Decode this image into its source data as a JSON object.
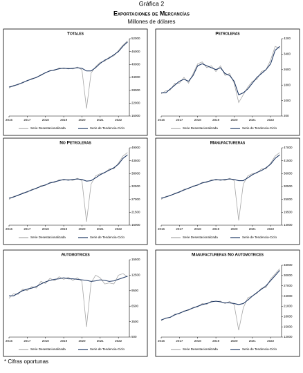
{
  "header": {
    "figure": "Gráfica 2",
    "title": "Exportaciones de Mercancías",
    "subtitle": "Millones de dólares",
    "footnote": "* Cifras oportunas"
  },
  "chart_data": [
    {
      "type": "line",
      "title": "Totales",
      "x": [
        2016,
        2016.25,
        2016.5,
        2016.75,
        2017,
        2017.25,
        2017.5,
        2017.75,
        2018,
        2018.25,
        2018.5,
        2018.75,
        2019,
        2019.25,
        2019.5,
        2019.75,
        2020,
        2020.25,
        2020.5,
        2020.75,
        2021,
        2021.25,
        2021.5,
        2021.75,
        2022,
        2022.25,
        2022.5
      ],
      "xlim": [
        2016,
        2022.6
      ],
      "xticks": [
        2016,
        2017,
        2018,
        2019,
        2020,
        2021,
        2022
      ],
      "ylim": [
        16000,
        52000
      ],
      "yticks": [
        16000,
        22000,
        28000,
        34000,
        40000,
        46000,
        52000
      ],
      "series": [
        {
          "name": "Serie Desestacionalizada",
          "color": "#a6a6a6",
          "values": [
            29000,
            30300,
            30500,
            31800,
            32300,
            33500,
            33800,
            35300,
            36000,
            37300,
            37200,
            38400,
            38000,
            38300,
            37900,
            38800,
            37500,
            19500,
            36000,
            39000,
            41000,
            41500,
            43500,
            44000,
            46500,
            49000,
            51000
          ]
        },
        {
          "name": "Serie de Tendencia-Ciclo",
          "color": "#1f3864",
          "values": [
            29500,
            30000,
            30800,
            31500,
            32500,
            33200,
            34000,
            35000,
            36200,
            37000,
            37500,
            38000,
            38300,
            38000,
            38200,
            38500,
            38200,
            37000,
            37000,
            38500,
            40500,
            42000,
            43000,
            44500,
            46000,
            48500,
            50500
          ]
        }
      ]
    },
    {
      "type": "line",
      "title": "Petroleras",
      "x": [
        2016,
        2016.25,
        2016.5,
        2016.75,
        2017,
        2017.25,
        2017.5,
        2017.75,
        2018,
        2018.25,
        2018.5,
        2018.75,
        2019,
        2019.25,
        2019.5,
        2019.75,
        2020,
        2020.25,
        2020.5,
        2020.75,
        2021,
        2021.25,
        2021.5,
        2021.75,
        2022,
        2022.25,
        2022.5
      ],
      "xlim": [
        2016,
        2022.6
      ],
      "xticks": [
        2016,
        2017,
        2018,
        2019,
        2020,
        2021,
        2022
      ],
      "ylim": [
        200,
        4200
      ],
      "yticks": [
        200,
        1000,
        1800,
        2600,
        3400,
        4200
      ],
      "series": [
        {
          "name": "Serie Desestacionalizada",
          "color": "#a6a6a6",
          "values": [
            1350,
            1500,
            1550,
            1900,
            1900,
            2200,
            1900,
            2400,
            2900,
            3000,
            2700,
            2800,
            2500,
            2800,
            2300,
            2400,
            1900,
            900,
            1300,
            1700,
            2000,
            2100,
            2500,
            2600,
            3100,
            3800,
            3700
          ]
        },
        {
          "name": "Serie de Tendencia-Ciclo",
          "color": "#1f3864",
          "values": [
            1400,
            1400,
            1600,
            1800,
            2000,
            2100,
            2000,
            2300,
            2800,
            2900,
            2800,
            2700,
            2600,
            2700,
            2400,
            2300,
            2000,
            1300,
            1400,
            1600,
            1900,
            2200,
            2400,
            2600,
            2900,
            3600,
            3800
          ]
        }
      ]
    },
    {
      "type": "line",
      "title": "No Petroleras",
      "x": [
        2016,
        2016.25,
        2016.5,
        2016.75,
        2017,
        2017.25,
        2017.5,
        2017.75,
        2018,
        2018.25,
        2018.5,
        2018.75,
        2019,
        2019.25,
        2019.5,
        2019.75,
        2020,
        2020.25,
        2020.5,
        2020.75,
        2021,
        2021.25,
        2021.5,
        2021.75,
        2022,
        2022.25,
        2022.5
      ],
      "xlim": [
        2016,
        2022.6
      ],
      "xticks": [
        2016,
        2017,
        2018,
        2019,
        2020,
        2021,
        2022
      ],
      "ylim": [
        16000,
        49000
      ],
      "yticks": [
        16000,
        21500,
        27000,
        32500,
        38000,
        43500,
        49000
      ],
      "series": [
        {
          "name": "Serie Desestacionalizada",
          "color": "#a6a6a6",
          "values": [
            27000,
            28300,
            28600,
            29800,
            30000,
            31300,
            31500,
            32900,
            33000,
            34300,
            34200,
            35400,
            35200,
            35500,
            35100,
            36000,
            35000,
            17500,
            33500,
            37000,
            38000,
            38300,
            40000,
            40000,
            42500,
            45500,
            47000
          ]
        },
        {
          "name": "Serie de Tendencia-Ciclo",
          "color": "#1f3864",
          "values": [
            27500,
            28000,
            28800,
            29500,
            30300,
            31000,
            31800,
            32500,
            33200,
            34000,
            34500,
            35000,
            35500,
            35200,
            35500,
            35700,
            35500,
            34800,
            35000,
            36200,
            37500,
            38500,
            39500,
            40500,
            42000,
            44500,
            46000
          ]
        }
      ]
    },
    {
      "type": "line",
      "title": "Manufactureras",
      "x": [
        2016,
        2016.25,
        2016.5,
        2016.75,
        2017,
        2017.25,
        2017.5,
        2017.75,
        2018,
        2018.25,
        2018.5,
        2018.75,
        2019,
        2019.25,
        2019.5,
        2019.75,
        2020,
        2020.25,
        2020.5,
        2020.75,
        2021,
        2021.25,
        2021.5,
        2021.75,
        2022,
        2022.25,
        2022.5
      ],
      "xlim": [
        2016,
        2022.6
      ],
      "xticks": [
        2016,
        2017,
        2018,
        2019,
        2020,
        2021,
        2022
      ],
      "ylim": [
        14000,
        47000
      ],
      "yticks": [
        14000,
        19500,
        25000,
        30500,
        36000,
        41500,
        47000
      ],
      "series": [
        {
          "name": "Serie Desestacionalizada",
          "color": "#a6a6a6",
          "values": [
            25000,
            26300,
            26500,
            27700,
            28000,
            29300,
            29500,
            30800,
            31000,
            32300,
            32200,
            33400,
            33200,
            33500,
            33100,
            34000,
            33000,
            16000,
            31500,
            35000,
            36000,
            36200,
            38000,
            38000,
            40500,
            43500,
            45000
          ]
        },
        {
          "name": "Serie de Tendencia-Ciclo",
          "color": "#1f3864",
          "values": [
            25500,
            26000,
            26700,
            27400,
            28200,
            29000,
            29800,
            30500,
            31200,
            32000,
            32500,
            33000,
            33500,
            33200,
            33500,
            33700,
            33500,
            33000,
            33000,
            34200,
            35500,
            36500,
            37300,
            38500,
            40000,
            42500,
            44000
          ]
        }
      ]
    },
    {
      "type": "line",
      "title": "Automotrices",
      "x": [
        2016,
        2016.25,
        2016.5,
        2016.75,
        2017,
        2017.25,
        2017.5,
        2017.75,
        2018,
        2018.25,
        2018.5,
        2018.75,
        2019,
        2019.25,
        2019.5,
        2019.75,
        2020,
        2020.25,
        2020.5,
        2020.75,
        2021,
        2021.25,
        2021.5,
        2021.75,
        2022,
        2022.25,
        2022.5
      ],
      "xlim": [
        2016,
        2022.6
      ],
      "xticks": [
        2016,
        2017,
        2018,
        2019,
        2020,
        2021,
        2022
      ],
      "ylim": [
        500,
        15500
      ],
      "yticks": [
        500,
        3500,
        6500,
        9500,
        12500,
        15500
      ],
      "series": [
        {
          "name": "Serie Desestacionalizada",
          "color": "#a6a6a6",
          "values": [
            8000,
            8900,
            8800,
            9800,
            9500,
            10300,
            10000,
            11300,
            10900,
            11900,
            11400,
            12200,
            11700,
            12100,
            11500,
            12000,
            11300,
            2500,
            11000,
            12500,
            12000,
            10800,
            11000,
            10800,
            12500,
            12800,
            12200
          ]
        },
        {
          "name": "Serie de Tendencia-Ciclo",
          "color": "#1f3864",
          "values": [
            8500,
            8500,
            9000,
            9500,
            9800,
            10000,
            10300,
            10800,
            11200,
            11500,
            11700,
            11800,
            12000,
            11800,
            11800,
            11700,
            11600,
            11500,
            11300,
            11400,
            11600,
            11500,
            11300,
            11400,
            11700,
            12000,
            12300
          ]
        }
      ]
    },
    {
      "type": "line",
      "title": "Manufactureras No Automotrices",
      "x": [
        2016,
        2016.25,
        2016.5,
        2016.75,
        2017,
        2017.25,
        2017.5,
        2017.75,
        2018,
        2018.25,
        2018.5,
        2018.75,
        2019,
        2019.25,
        2019.5,
        2019.75,
        2020,
        2020.25,
        2020.5,
        2020.75,
        2021,
        2021.25,
        2021.5,
        2021.75,
        2022,
        2022.25,
        2022.5
      ],
      "xlim": [
        2016,
        2022.6
      ],
      "xticks": [
        2016,
        2017,
        2018,
        2019,
        2020,
        2021,
        2022
      ],
      "ylim": [
        12000,
        33000
      ],
      "yticks": [
        12000,
        15000,
        18000,
        21000,
        24000,
        27000,
        30000,
        33000
      ],
      "series": [
        {
          "name": "Serie Desestacionalizada",
          "color": "#a6a6a6",
          "values": [
            16800,
            17600,
            17700,
            18700,
            18800,
            19700,
            19800,
            20700,
            20800,
            21800,
            21600,
            22500,
            22400,
            22500,
            21800,
            22400,
            21500,
            14000,
            20500,
            23500,
            24000,
            24800,
            26300,
            26500,
            29000,
            30500,
            32000
          ]
        },
        {
          "name": "Serie de Tendencia-Ciclo",
          "color": "#1f3864",
          "values": [
            17000,
            17500,
            17800,
            18500,
            19000,
            19500,
            20000,
            20500,
            21000,
            21500,
            21800,
            22300,
            22500,
            22300,
            22000,
            22000,
            21800,
            21500,
            21800,
            22800,
            24000,
            25000,
            26000,
            27000,
            28500,
            30000,
            31500
          ]
        }
      ]
    }
  ]
}
